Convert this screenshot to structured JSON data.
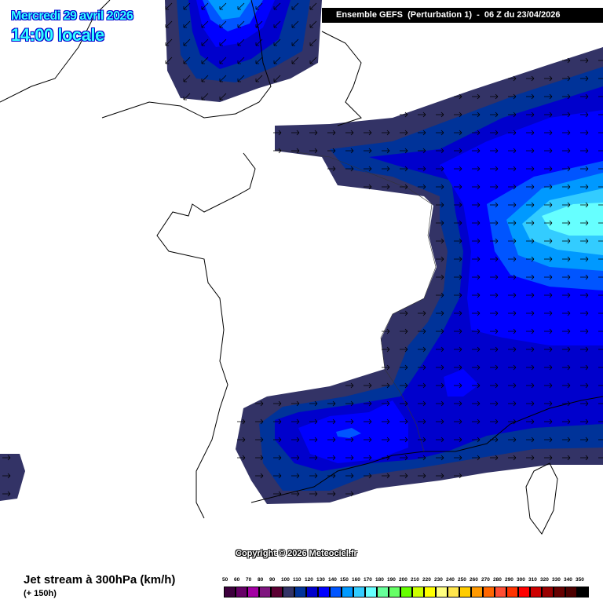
{
  "header": {
    "date": "Mercredi 29 avril 2026",
    "time": "14:00 locale",
    "model_run": "Ensemble GEFS  (Perturbation 1)  -  06 Z du 23/04/2026"
  },
  "copyright": "Copyright © 2026 Meteociel.fr",
  "footer": {
    "title": "Jet stream à 300hPa (km/h)",
    "lead_time": "(+ 150h)"
  },
  "legend": {
    "labels": [
      "50",
      "60",
      "70",
      "80",
      "90",
      "100",
      "110",
      "120",
      "130",
      "140",
      "150",
      "160",
      "170",
      "180",
      "190",
      "200",
      "210",
      "220",
      "230",
      "240",
      "250",
      "260",
      "270",
      "280",
      "290",
      "300",
      "310",
      "320",
      "330",
      "340",
      "350"
    ],
    "colors": [
      "#3d003d",
      "#660066",
      "#a300a3",
      "#7f157f",
      "#5c0033",
      "#333366",
      "#003399",
      "#0000cc",
      "#0000ff",
      "#0055ff",
      "#0099ff",
      "#33ccff",
      "#66ffff",
      "#66ff99",
      "#66ff66",
      "#66ff00",
      "#ccff00",
      "#ffff00",
      "#ffff80",
      "#ffe64d",
      "#ffcc00",
      "#ff9900",
      "#ff6600",
      "#ff4d33",
      "#ff3300",
      "#ff0000",
      "#cc0000",
      "#990000",
      "#660000",
      "#4d0000",
      "#000000"
    ]
  },
  "wind_direction_arrows": [
    "arrow-down-left-icon",
    "arrow-right-icon"
  ]
}
